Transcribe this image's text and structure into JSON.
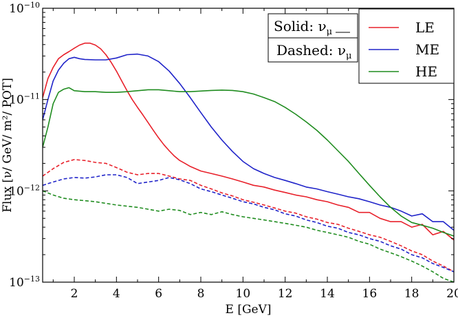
{
  "chart_data": {
    "type": "line",
    "xlabel": "E [GeV]",
    "ylabel": "Flux [ν/ GeV/ m²/ POT]",
    "xlim": [
      0.5,
      20
    ],
    "ylim": [
      1e-13,
      1e-10
    ],
    "y_scale": "log",
    "grid": false,
    "x_ticks": [
      2,
      4,
      6,
      8,
      10,
      12,
      14,
      16,
      18,
      20
    ],
    "y_ticks": [
      {
        "value": 1e-13,
        "label": "10",
        "exp": "−13"
      },
      {
        "value": 1e-12,
        "label": "10",
        "exp": "−12"
      },
      {
        "value": 1e-11,
        "label": "10",
        "exp": "−11"
      },
      {
        "value": 1e-10,
        "label": "10",
        "exp": "−10"
      }
    ],
    "style_legend": {
      "solid_label": "Solid:",
      "solid_symbol": "ν",
      "solid_sub": "μ",
      "dashed_label": "Dashed:",
      "dashed_symbol": "ν",
      "dashed_sub": "μ",
      "placement": "top-center"
    },
    "legend_placement": "top-right",
    "series": [
      {
        "name": "LE",
        "color": "#e8202a",
        "line": "solid",
        "points": [
          [
            0.5,
            1.05e-11
          ],
          [
            0.75,
            1.7e-11
          ],
          [
            1.0,
            2.25e-11
          ],
          [
            1.25,
            2.8e-11
          ],
          [
            1.5,
            3.1e-11
          ],
          [
            1.75,
            3.35e-11
          ],
          [
            2.0,
            3.65e-11
          ],
          [
            2.25,
            3.95e-11
          ],
          [
            2.5,
            4.15e-11
          ],
          [
            2.75,
            4.15e-11
          ],
          [
            3.0,
            3.95e-11
          ],
          [
            3.25,
            3.6e-11
          ],
          [
            3.5,
            3.1e-11
          ],
          [
            3.75,
            2.55e-11
          ],
          [
            4.0,
            2.05e-11
          ],
          [
            4.25,
            1.6e-11
          ],
          [
            4.5,
            1.25e-11
          ],
          [
            4.75,
            1e-11
          ],
          [
            5.0,
            8.2e-12
          ],
          [
            5.25,
            6.8e-12
          ],
          [
            5.5,
            5.6e-12
          ],
          [
            5.75,
            4.6e-12
          ],
          [
            6.0,
            3.8e-12
          ],
          [
            6.25,
            3.2e-12
          ],
          [
            6.5,
            2.75e-12
          ],
          [
            6.75,
            2.4e-12
          ],
          [
            7.0,
            2.15e-12
          ],
          [
            7.25,
            2e-12
          ],
          [
            7.5,
            1.85e-12
          ],
          [
            8.0,
            1.65e-12
          ],
          [
            8.5,
            1.55e-12
          ],
          [
            9.0,
            1.45e-12
          ],
          [
            9.5,
            1.35e-12
          ],
          [
            10.0,
            1.25e-12
          ],
          [
            10.5,
            1.15e-12
          ],
          [
            11.0,
            1.1e-12
          ],
          [
            11.5,
            1.02e-12
          ],
          [
            12.0,
            9.6e-13
          ],
          [
            12.5,
            9e-13
          ],
          [
            13.0,
            8.6e-13
          ],
          [
            13.5,
            8e-13
          ],
          [
            14.0,
            7.6e-13
          ],
          [
            14.5,
            7e-13
          ],
          [
            15.0,
            6.6e-13
          ],
          [
            15.5,
            5.8e-13
          ],
          [
            16.0,
            5.8e-13
          ],
          [
            16.5,
            5e-13
          ],
          [
            17.0,
            4.6e-13
          ],
          [
            17.5,
            4.6e-13
          ],
          [
            18.0,
            4e-13
          ],
          [
            18.5,
            4.3e-13
          ],
          [
            19.0,
            3.3e-13
          ],
          [
            19.5,
            3.6e-13
          ],
          [
            20.0,
            2.9e-13
          ]
        ]
      },
      {
        "name": "ME",
        "color": "#1f23c9",
        "line": "solid",
        "points": [
          [
            0.5,
            6e-12
          ],
          [
            0.75,
            1e-11
          ],
          [
            1.0,
            1.6e-11
          ],
          [
            1.25,
            2.1e-11
          ],
          [
            1.5,
            2.5e-11
          ],
          [
            1.75,
            2.8e-11
          ],
          [
            2.0,
            2.9e-11
          ],
          [
            2.25,
            2.8e-11
          ],
          [
            2.5,
            2.75e-11
          ],
          [
            3.0,
            2.72e-11
          ],
          [
            3.5,
            2.72e-11
          ],
          [
            4.0,
            2.85e-11
          ],
          [
            4.5,
            3.1e-11
          ],
          [
            5.0,
            3.15e-11
          ],
          [
            5.5,
            3e-11
          ],
          [
            6.0,
            2.6e-11
          ],
          [
            6.5,
            2.05e-11
          ],
          [
            7.0,
            1.5e-11
          ],
          [
            7.5,
            1.05e-11
          ],
          [
            8.0,
            7.2e-12
          ],
          [
            8.5,
            5e-12
          ],
          [
            9.0,
            3.6e-12
          ],
          [
            9.5,
            2.7e-12
          ],
          [
            10.0,
            2.1e-12
          ],
          [
            10.5,
            1.75e-12
          ],
          [
            11.0,
            1.55e-12
          ],
          [
            11.5,
            1.4e-12
          ],
          [
            12.0,
            1.3e-12
          ],
          [
            12.5,
            1.2e-12
          ],
          [
            13.0,
            1.1e-12
          ],
          [
            13.5,
            1.05e-12
          ],
          [
            14.0,
            9.8e-13
          ],
          [
            14.5,
            9.2e-13
          ],
          [
            15.0,
            8.6e-13
          ],
          [
            15.5,
            8.2e-13
          ],
          [
            16.0,
            7.6e-13
          ],
          [
            16.5,
            7e-13
          ],
          [
            17.0,
            6.6e-13
          ],
          [
            17.5,
            6e-13
          ],
          [
            18.0,
            5.3e-13
          ],
          [
            18.5,
            5.6e-13
          ],
          [
            19.0,
            4.6e-13
          ],
          [
            19.5,
            4.6e-13
          ],
          [
            20.0,
            3.7e-13
          ]
        ]
      },
      {
        "name": "HE",
        "color": "#1f8c1f",
        "line": "solid",
        "points": [
          [
            0.5,
            3e-12
          ],
          [
            0.75,
            5e-12
          ],
          [
            1.0,
            9e-12
          ],
          [
            1.25,
            1.2e-11
          ],
          [
            1.5,
            1.3e-11
          ],
          [
            1.75,
            1.35e-11
          ],
          [
            2.0,
            1.25e-11
          ],
          [
            2.5,
            1.22e-11
          ],
          [
            3.0,
            1.22e-11
          ],
          [
            3.5,
            1.2e-11
          ],
          [
            4.0,
            1.2e-11
          ],
          [
            4.5,
            1.22e-11
          ],
          [
            5.0,
            1.25e-11
          ],
          [
            5.5,
            1.28e-11
          ],
          [
            6.0,
            1.28e-11
          ],
          [
            6.5,
            1.25e-11
          ],
          [
            7.0,
            1.22e-11
          ],
          [
            7.5,
            1.22e-11
          ],
          [
            8.0,
            1.24e-11
          ],
          [
            8.5,
            1.26e-11
          ],
          [
            9.0,
            1.27e-11
          ],
          [
            9.5,
            1.26e-11
          ],
          [
            10.0,
            1.22e-11
          ],
          [
            10.5,
            1.15e-11
          ],
          [
            11.0,
            1.05e-11
          ],
          [
            11.5,
            9.5e-12
          ],
          [
            12.0,
            8.2e-12
          ],
          [
            12.5,
            6.9e-12
          ],
          [
            13.0,
            5.7e-12
          ],
          [
            13.5,
            4.6e-12
          ],
          [
            14.0,
            3.6e-12
          ],
          [
            14.5,
            2.75e-12
          ],
          [
            15.0,
            2.1e-12
          ],
          [
            15.5,
            1.55e-12
          ],
          [
            16.0,
            1.15e-12
          ],
          [
            16.5,
            8.6e-13
          ],
          [
            17.0,
            6.6e-13
          ],
          [
            17.5,
            5.3e-13
          ],
          [
            18.0,
            4.5e-13
          ],
          [
            18.5,
            4.2e-13
          ],
          [
            19.0,
            3.9e-13
          ],
          [
            19.5,
            3.5e-13
          ],
          [
            20.0,
            3.2e-13
          ]
        ]
      },
      {
        "name": "",
        "color": "#e8202a",
        "line": "dashed",
        "points": [
          [
            0.5,
            1.45e-12
          ],
          [
            1.0,
            1.75e-12
          ],
          [
            1.5,
            2.05e-12
          ],
          [
            2.0,
            2.2e-12
          ],
          [
            2.5,
            2.15e-12
          ],
          [
            3.0,
            2.05e-12
          ],
          [
            3.5,
            2e-12
          ],
          [
            4.0,
            1.8e-12
          ],
          [
            4.5,
            1.6e-12
          ],
          [
            5.0,
            1.5e-12
          ],
          [
            5.5,
            1.55e-12
          ],
          [
            6.0,
            1.55e-12
          ],
          [
            6.5,
            1.45e-12
          ],
          [
            7.0,
            1.35e-12
          ],
          [
            7.5,
            1.3e-12
          ],
          [
            8.0,
            1.15e-12
          ],
          [
            8.5,
            1.05e-12
          ],
          [
            9.0,
            9.5e-13
          ],
          [
            9.5,
            8.8e-13
          ],
          [
            10.0,
            8e-13
          ],
          [
            10.5,
            7.5e-13
          ],
          [
            11.0,
            7e-13
          ],
          [
            11.5,
            6.5e-13
          ],
          [
            12.0,
            6e-13
          ],
          [
            12.5,
            5.7e-13
          ],
          [
            13.0,
            5.2e-13
          ],
          [
            13.5,
            4.9e-13
          ],
          [
            14.0,
            4.5e-13
          ],
          [
            14.5,
            4.3e-13
          ],
          [
            15.0,
            3.9e-13
          ],
          [
            15.5,
            3.6e-13
          ],
          [
            16.0,
            3.3e-13
          ],
          [
            16.5,
            3.1e-13
          ],
          [
            17.0,
            2.8e-13
          ],
          [
            17.5,
            2.5e-13
          ],
          [
            18.0,
            2.2e-13
          ],
          [
            18.5,
            2e-13
          ],
          [
            19.0,
            1.7e-13
          ],
          [
            19.5,
            1.5e-13
          ],
          [
            20.0,
            1.3e-13
          ]
        ]
      },
      {
        "name": "",
        "color": "#1f23c9",
        "line": "dashed",
        "points": [
          [
            0.5,
            1.15e-12
          ],
          [
            1.0,
            1.25e-12
          ],
          [
            1.5,
            1.35e-12
          ],
          [
            2.0,
            1.4e-12
          ],
          [
            2.5,
            1.38e-12
          ],
          [
            3.0,
            1.42e-12
          ],
          [
            3.5,
            1.5e-12
          ],
          [
            4.0,
            1.5e-12
          ],
          [
            4.5,
            1.4e-12
          ],
          [
            5.0,
            1.2e-12
          ],
          [
            5.5,
            1.25e-12
          ],
          [
            6.0,
            1.3e-12
          ],
          [
            6.5,
            1.4e-12
          ],
          [
            7.0,
            1.32e-12
          ],
          [
            7.5,
            1.2e-12
          ],
          [
            8.0,
            1.05e-12
          ],
          [
            8.5,
            9.8e-13
          ],
          [
            9.0,
            9e-13
          ],
          [
            9.5,
            8.3e-13
          ],
          [
            10.0,
            7.6e-13
          ],
          [
            10.5,
            7.2e-13
          ],
          [
            11.0,
            6.6e-13
          ],
          [
            11.5,
            6.2e-13
          ],
          [
            12.0,
            5.6e-13
          ],
          [
            12.5,
            5.3e-13
          ],
          [
            13.0,
            4.8e-13
          ],
          [
            13.5,
            4.5e-13
          ],
          [
            14.0,
            4.1e-13
          ],
          [
            14.5,
            3.9e-13
          ],
          [
            15.0,
            3.5e-13
          ],
          [
            15.5,
            3.3e-13
          ],
          [
            16.0,
            3e-13
          ],
          [
            16.5,
            2.8e-13
          ],
          [
            17.0,
            2.5e-13
          ],
          [
            17.5,
            2.3e-13
          ],
          [
            18.0,
            2e-13
          ],
          [
            18.5,
            1.85e-13
          ],
          [
            19.0,
            1.6e-13
          ],
          [
            19.5,
            1.45e-13
          ],
          [
            20.0,
            1.3e-13
          ]
        ]
      },
      {
        "name": "",
        "color": "#1f8c1f",
        "line": "dashed",
        "points": [
          [
            0.5,
            1e-12
          ],
          [
            1.0,
            9e-13
          ],
          [
            1.5,
            8.3e-13
          ],
          [
            2.0,
            8e-13
          ],
          [
            2.5,
            7.8e-13
          ],
          [
            3.0,
            7.6e-13
          ],
          [
            3.5,
            7.3e-13
          ],
          [
            4.0,
            7e-13
          ],
          [
            4.5,
            6.8e-13
          ],
          [
            5.0,
            6.6e-13
          ],
          [
            5.5,
            6.3e-13
          ],
          [
            6.0,
            6e-13
          ],
          [
            6.5,
            6.3e-13
          ],
          [
            7.0,
            6.1e-13
          ],
          [
            7.5,
            5.5e-13
          ],
          [
            8.0,
            5.8e-13
          ],
          [
            8.5,
            5.5e-13
          ],
          [
            9.0,
            5.9e-13
          ],
          [
            9.5,
            5.5e-13
          ],
          [
            10.0,
            5.2e-13
          ],
          [
            10.5,
            5e-13
          ],
          [
            11.0,
            4.8e-13
          ],
          [
            11.5,
            4.6e-13
          ],
          [
            12.0,
            4.4e-13
          ],
          [
            12.5,
            4.2e-13
          ],
          [
            13.0,
            4e-13
          ],
          [
            13.5,
            3.7e-13
          ],
          [
            14.0,
            3.5e-13
          ],
          [
            14.5,
            3.3e-13
          ],
          [
            15.0,
            3.1e-13
          ],
          [
            15.5,
            2.8e-13
          ],
          [
            16.0,
            2.6e-13
          ],
          [
            16.5,
            2.3e-13
          ],
          [
            17.0,
            2.1e-13
          ],
          [
            17.5,
            1.9e-13
          ],
          [
            18.0,
            1.7e-13
          ],
          [
            18.5,
            1.5e-13
          ],
          [
            19.0,
            1.3e-13
          ],
          [
            19.5,
            1.1e-13
          ],
          [
            20.0,
            1e-13
          ]
        ]
      }
    ]
  }
}
